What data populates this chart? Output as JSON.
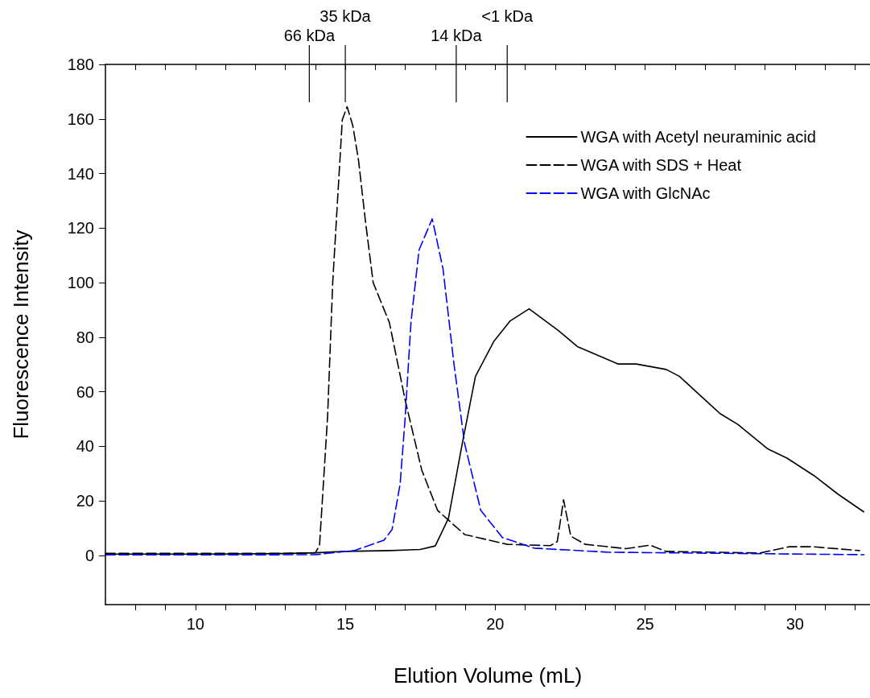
{
  "chart_data": {
    "type": "line",
    "xlabel": "Elution Volume (mL)",
    "ylabel": "Fluorescence Intensity",
    "xlim": [
      7,
      32.5
    ],
    "ylim": [
      -18,
      180
    ],
    "xticks": [
      {
        "value": 8,
        "label": null
      },
      {
        "value": 9,
        "label": null
      },
      10,
      {
        "value": 11,
        "label": null
      },
      {
        "value": 12,
        "label": null
      },
      {
        "value": 13,
        "label": null
      },
      {
        "value": 14,
        "label": null
      },
      15,
      {
        "value": 16,
        "label": null
      },
      {
        "value": 17,
        "label": null
      },
      {
        "value": 18,
        "label": null
      },
      {
        "value": 19,
        "label": null
      },
      20,
      {
        "value": 21,
        "label": null
      },
      {
        "value": 22,
        "label": null
      },
      {
        "value": 23,
        "label": null
      },
      {
        "value": 24,
        "label": null
      },
      25,
      {
        "value": 26,
        "label": null
      },
      {
        "value": 27,
        "label": null
      },
      {
        "value": 28,
        "label": null
      },
      {
        "value": 29,
        "label": null
      },
      30,
      {
        "value": 31,
        "label": null
      },
      {
        "value": 32,
        "label": null
      }
    ],
    "yticks": [
      0,
      20,
      40,
      60,
      80,
      100,
      120,
      140,
      160,
      180
    ],
    "grid": false,
    "legend": "top right",
    "marker": "none",
    "ref_lines": [
      {
        "axis": "x",
        "value": 13.8,
        "label": "66 kDa"
      },
      {
        "axis": "x",
        "value": 15.0,
        "label": "35 kDa"
      },
      {
        "axis": "x",
        "value": 18.7,
        "label": "14 kDa"
      },
      {
        "axis": "x",
        "value": 20.4,
        "label": "<1 kDa"
      }
    ],
    "series": [
      {
        "name": "WGA with Acetyl neuraminic acid",
        "color": "#000000",
        "line_style": "solid",
        "x": [
          7,
          10,
          13,
          14,
          15,
          16.5,
          17.5,
          18.0,
          18.44,
          18.9,
          19.34,
          19.96,
          20.5,
          21.13,
          22.1,
          22.74,
          23.4,
          24.09,
          24.7,
          25.7,
          26.14,
          27.5,
          28.1,
          29.1,
          29.73,
          30.63,
          31.43,
          32.29
        ],
        "values": [
          0.5,
          0.5,
          0.7,
          1.0,
          1.5,
          1.8,
          2.2,
          3.5,
          13.6,
          41,
          65.6,
          78.6,
          86,
          90.4,
          82.5,
          76.6,
          73.5,
          70.2,
          70.2,
          68.2,
          65.7,
          52,
          48,
          39,
          35.7,
          29.3,
          22.5,
          16
        ]
      },
      {
        "name": "WGA with SDS + Heat",
        "color": "#000000",
        "line_style": "dashed",
        "x": [
          7,
          10,
          13,
          14.0,
          14.14,
          14.41,
          14.58,
          14.9,
          15.06,
          15.25,
          15.44,
          15.68,
          15.93,
          16.47,
          17.0,
          17.55,
          18.08,
          18.98,
          20.4,
          21.84,
          22.07,
          22.28,
          22.52,
          23.0,
          24.36,
          25.16,
          25.7,
          28.83,
          29.8,
          30.6,
          32.15
        ],
        "values": [
          0.8,
          0.8,
          0.8,
          1.0,
          3.6,
          51,
          100,
          159.7,
          164.5,
          157.6,
          145,
          121.8,
          100,
          85.4,
          56.8,
          31.3,
          16.5,
          7.7,
          4.1,
          3.6,
          5.1,
          20.4,
          7.1,
          4.1,
          2.5,
          3.8,
          1.5,
          0.9,
          3.2,
          3.2,
          1.8
        ]
      },
      {
        "name": "WGA with GlcNAc",
        "color": "#0000ff",
        "line_style": "dashed",
        "x": [
          7,
          10,
          14,
          15.3,
          16.29,
          16.56,
          16.83,
          17.0,
          17.19,
          17.46,
          17.9,
          18.26,
          18.62,
          18.98,
          19.52,
          20.24,
          21.3,
          23.8,
          32.3
        ],
        "values": [
          0.2,
          0.2,
          0.3,
          1.8,
          5.6,
          9.5,
          26.3,
          51,
          85.4,
          112,
          123.4,
          105,
          70.6,
          41,
          16.5,
          6.6,
          2.7,
          1.2,
          0.3
        ]
      }
    ]
  }
}
